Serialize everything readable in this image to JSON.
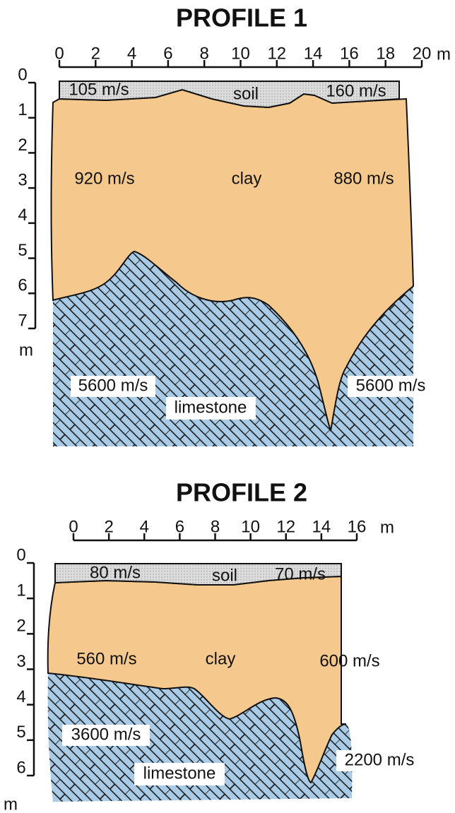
{
  "profiles": [
    {
      "title": "PROFILE 1",
      "xticks": [
        0,
        2,
        4,
        6,
        8,
        10,
        12,
        14,
        16,
        18,
        20
      ],
      "x_unit": "m",
      "yticks": [
        0,
        1,
        2,
        3,
        4,
        5,
        6,
        7
      ],
      "y_unit": "m",
      "labels": [
        "105 m/s",
        "soil",
        "160 m/s",
        "920 m/s",
        "clay",
        "880 m/s",
        "5600 m/s",
        "limestone",
        "5600 m/s"
      ]
    },
    {
      "title": "PROFILE 2",
      "xticks": [
        0,
        2,
        4,
        6,
        8,
        10,
        12,
        14,
        16
      ],
      "x_unit": "m",
      "yticks": [
        0,
        1,
        2,
        3,
        4,
        5,
        6
      ],
      "y_unit": "m",
      "labels": [
        "80 m/s",
        "soil",
        "70 m/s",
        "560 m/s",
        "clay",
        "600 m/s",
        "3600 m/s",
        "limestone",
        "2200 m/s"
      ]
    }
  ]
}
